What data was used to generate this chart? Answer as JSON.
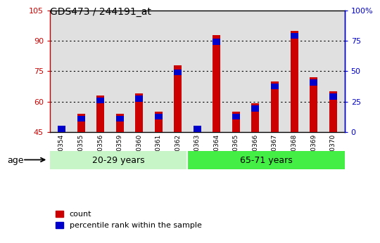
{
  "title": "GDS473 / 244191_at",
  "categories": [
    "GSM10354",
    "GSM10355",
    "GSM10356",
    "GSM10359",
    "GSM10360",
    "GSM10361",
    "GSM10362",
    "GSM10363",
    "GSM10364",
    "GSM10365",
    "GSM10366",
    "GSM10367",
    "GSM10368",
    "GSM10369",
    "GSM10370"
  ],
  "count_values": [
    47,
    54,
    63,
    54,
    64,
    55,
    78,
    48,
    93,
    55,
    59,
    70,
    95,
    72,
    65
  ],
  "blue_bottom": [
    45,
    50,
    59,
    50,
    60,
    51,
    73,
    45,
    88,
    51,
    55,
    66,
    91,
    68,
    61
  ],
  "blue_height": [
    3,
    3,
    3,
    3,
    3,
    3,
    3,
    3,
    3,
    3,
    3,
    3,
    3,
    3,
    3
  ],
  "ymin": 45,
  "ymax": 105,
  "yticks_left": [
    45,
    60,
    75,
    90,
    105
  ],
  "yticks_right": [
    0,
    25,
    50,
    75,
    100
  ],
  "group1_n": 7,
  "group1_label": "20-29 years",
  "group2_label": "65-71 years",
  "group1_color": "#c8f5c8",
  "group2_color": "#44ee44",
  "bar_color_red": "#cc0000",
  "bar_color_blue": "#0000cc",
  "bar_width": 0.4,
  "age_label": "age",
  "legend_count": "count",
  "legend_percentile": "percentile rank within the sample",
  "left_axis_color": "#cc0000",
  "right_axis_color": "#0000cc",
  "bg_color": "#e0e0e0",
  "grid_yticks": [
    60,
    75,
    90
  ]
}
